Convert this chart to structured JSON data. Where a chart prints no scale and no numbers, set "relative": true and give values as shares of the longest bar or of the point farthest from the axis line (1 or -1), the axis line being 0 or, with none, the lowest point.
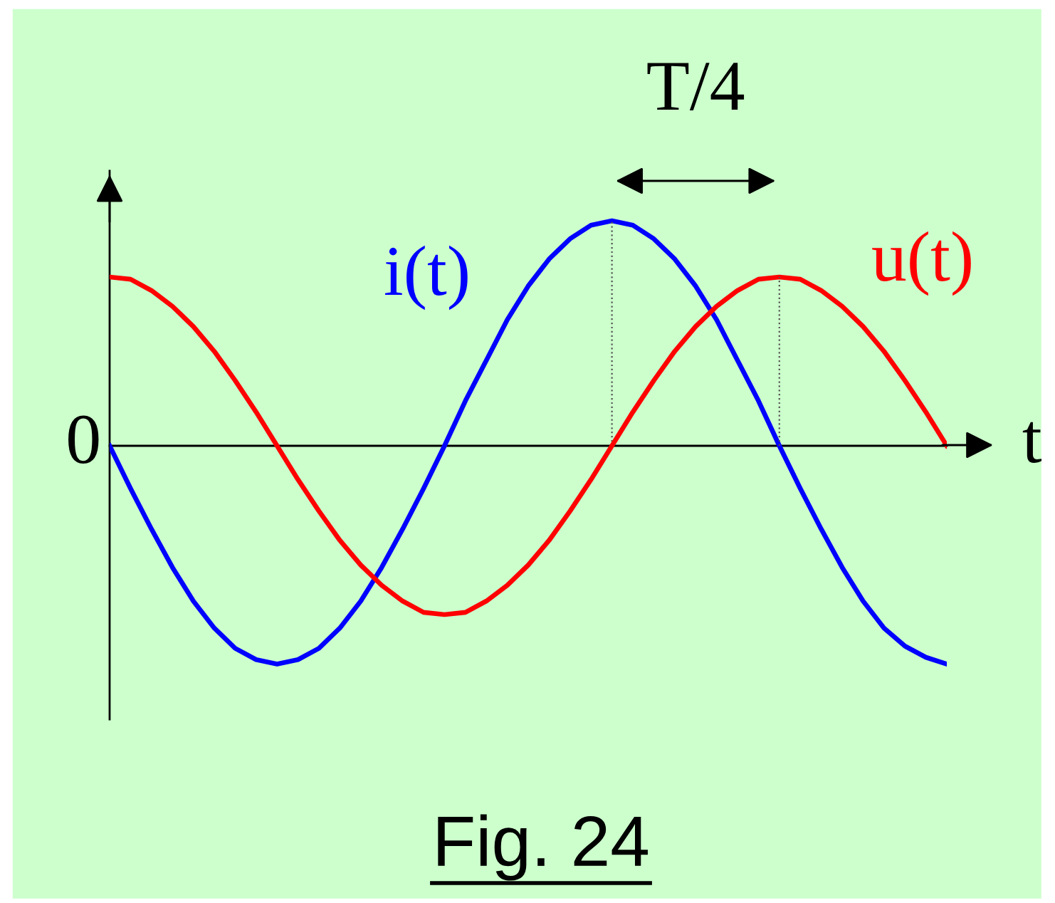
{
  "chart_data": {
    "type": "line",
    "relative": true,
    "xlabel": "t",
    "categories": [
      null,
      null,
      null,
      null,
      null,
      null,
      null,
      null,
      null,
      null,
      null,
      null,
      null,
      null,
      null,
      null,
      null,
      null,
      null,
      null,
      null,
      null,
      null,
      null,
      null,
      null,
      null,
      null,
      null,
      null,
      null,
      null,
      null,
      null,
      null,
      null,
      null,
      null,
      null,
      null,
      null
    ],
    "series": [
      {
        "name": "i(t)",
        "color": "#0000ff",
        "values": [
          0,
          -0.19,
          -0.37,
          -0.54,
          -0.69,
          -0.81,
          -0.9,
          -0.95,
          -0.97,
          -0.95,
          -0.9,
          -0.81,
          -0.69,
          -0.54,
          -0.37,
          -0.19,
          0,
          0.2,
          0.38,
          0.56,
          0.71,
          0.83,
          0.92,
          0.98,
          1,
          0.98,
          0.92,
          0.83,
          0.71,
          0.56,
          0.38,
          0.2,
          0,
          -0.19,
          -0.37,
          -0.54,
          -0.69,
          -0.81,
          -0.89,
          -0.94,
          -0.97
        ]
      },
      {
        "name": "u(t)",
        "color": "#ff0000",
        "values": [
          0.75,
          0.74,
          0.69,
          0.62,
          0.53,
          0.42,
          0.29,
          0.15,
          0,
          -0.15,
          -0.29,
          -0.42,
          -0.53,
          -0.62,
          -0.69,
          -0.74,
          -0.75,
          -0.74,
          -0.69,
          -0.62,
          -0.53,
          -0.42,
          -0.29,
          -0.15,
          0,
          0.15,
          0.29,
          0.42,
          0.53,
          0.62,
          0.69,
          0.74,
          0.75,
          0.74,
          0.69,
          0.62,
          0.53,
          0.42,
          0.29,
          0.15,
          0
        ]
      }
    ],
    "annotations": [
      "0",
      "T/4",
      "Fig. 24"
    ],
    "marker": "none",
    "line_style": "solid"
  }
}
